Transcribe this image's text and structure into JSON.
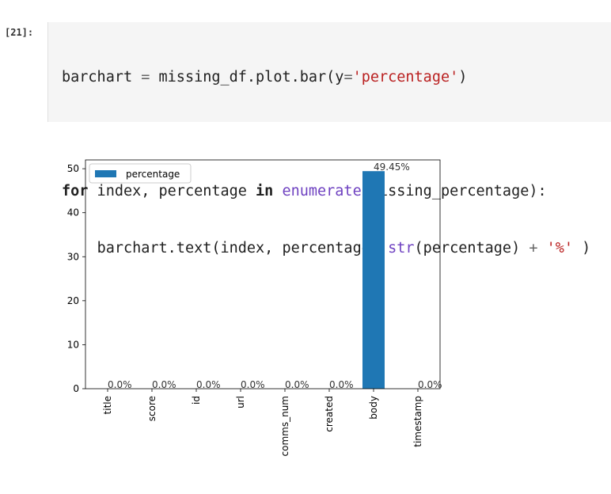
{
  "cell": {
    "prompt": "[21]:",
    "code": {
      "line1": {
        "a": "barchart ",
        "eq": "=",
        "b": " missing_df.plot.bar(y",
        "eq2": "=",
        "str": "'percentage'",
        "c": ")"
      },
      "line3": {
        "kw1": "for",
        "a": " index, percentage ",
        "kw2": "in",
        "sp": " ",
        "builtin": "enumerate",
        "b": "(missing_percentage):"
      },
      "line4": {
        "indent": "    ",
        "a": "barchart.text(index, percentage, ",
        "builtin": "str",
        "b": "(percentage) ",
        "plus": "+",
        "sp": " ",
        "str": "'%'",
        "c": " )"
      }
    }
  },
  "chart_data": {
    "type": "bar",
    "categories": [
      "title",
      "score",
      "id",
      "url",
      "comms_num",
      "created",
      "body",
      "timestamp"
    ],
    "series": [
      {
        "name": "percentage",
        "values": [
          0.0,
          0.0,
          0.0,
          0.0,
          0.0,
          0.0,
          49.45,
          0.0
        ],
        "color": "#1f77b4"
      }
    ],
    "data_labels": [
      "0.0%",
      "0.0%",
      "0.0%",
      "0.0%",
      "0.0%",
      "0.0%",
      "49.45%",
      "0.0%"
    ],
    "yticks": [
      "0",
      "10",
      "20",
      "30",
      "40",
      "50"
    ],
    "ylim": [
      0,
      52
    ],
    "legend": "top-left",
    "grid": false,
    "xlabel": "",
    "ylabel": "",
    "title": ""
  }
}
